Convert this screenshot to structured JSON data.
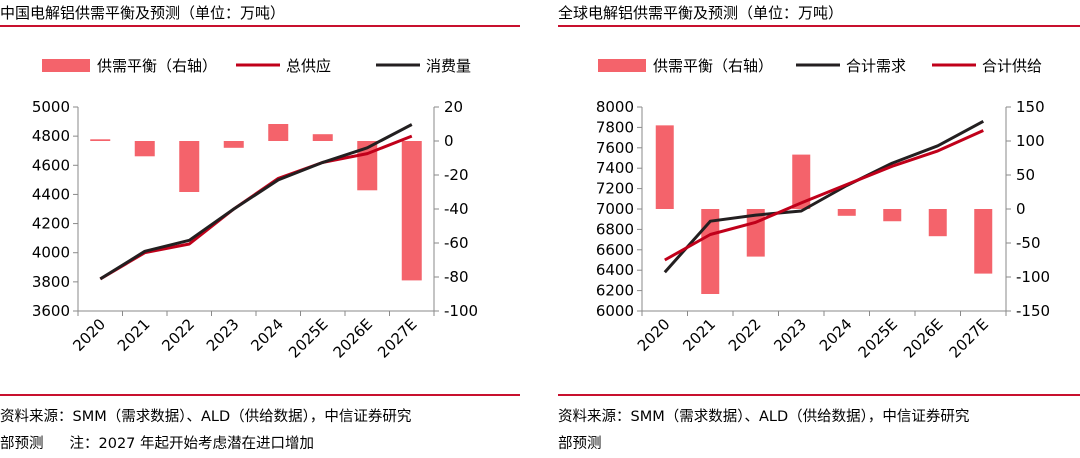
{
  "left": {
    "title": "中国电解铝供需平衡及预测（单位：万吨）",
    "source_line1": "资料来源：SMM（需求数据）、ALD（供给数据），中信证券研究",
    "source_line2": "部预测",
    "note": "注：2027 年起开始考虑潜在进口增加"
  },
  "right": {
    "title": "全球电解铝供需平衡及预测（单位：万吨）",
    "source_line1": "资料来源：SMM（需求数据）、ALD（供给数据），中信证券研究",
    "source_line2": "部预测"
  },
  "colors": {
    "bar": "#f4636b",
    "supply": "#c0001a",
    "demand": "#231f20",
    "rule": "#c8102e"
  },
  "chart_data": [
    {
      "id": "china",
      "type": "bar+line",
      "categories": [
        "2020",
        "2021",
        "2022",
        "2023",
        "2024",
        "2025E",
        "2026E",
        "2027E"
      ],
      "legend": [
        "供需平衡（右轴）",
        "总供应",
        "消费量"
      ],
      "y_left": {
        "min": 3600,
        "max": 5000,
        "ticks": [
          3600,
          3800,
          4000,
          4200,
          4400,
          4600,
          4800,
          5000
        ]
      },
      "y_right": {
        "min": -100,
        "max": 20,
        "ticks": [
          -100,
          -80,
          -60,
          -40,
          -20,
          0,
          20
        ]
      },
      "series": [
        {
          "name": "供需平衡（右轴）",
          "kind": "bar",
          "axis": "right",
          "values": [
            1,
            -9,
            -30,
            -4,
            10,
            4,
            -29,
            -82
          ]
        },
        {
          "name": "总供应",
          "kind": "line",
          "axis": "left",
          "values": [
            3820,
            4000,
            4060,
            4300,
            4510,
            4620,
            4680,
            4800
          ]
        },
        {
          "name": "消费量",
          "kind": "line",
          "axis": "left",
          "values": [
            3820,
            4010,
            4085,
            4300,
            4500,
            4620,
            4720,
            4880
          ]
        }
      ]
    },
    {
      "id": "global",
      "type": "bar+line",
      "categories": [
        "2020",
        "2021",
        "2022",
        "2023",
        "2024",
        "2025E",
        "2026E",
        "2027E"
      ],
      "legend": [
        "供需平衡（右轴）",
        "合计需求",
        "合计供给"
      ],
      "y_left": {
        "min": 6000,
        "max": 8000,
        "ticks": [
          6000,
          6200,
          6400,
          6600,
          6800,
          7000,
          7200,
          7400,
          7600,
          7800,
          8000
        ]
      },
      "y_right": {
        "min": -150,
        "max": 150,
        "ticks": [
          -150,
          -100,
          -50,
          0,
          50,
          100,
          150
        ]
      },
      "series": [
        {
          "name": "供需平衡（右轴）",
          "kind": "bar",
          "axis": "right",
          "values": [
            123,
            -125,
            -70,
            80,
            -10,
            -18,
            -40,
            -95
          ]
        },
        {
          "name": "合计需求",
          "kind": "line",
          "axis": "left",
          "values": [
            6380,
            6880,
            6940,
            6980,
            7230,
            7450,
            7620,
            7860
          ]
        },
        {
          "name": "合计供给",
          "kind": "line",
          "axis": "left",
          "values": [
            6500,
            6750,
            6870,
            7060,
            7240,
            7420,
            7570,
            7770
          ]
        }
      ]
    }
  ]
}
